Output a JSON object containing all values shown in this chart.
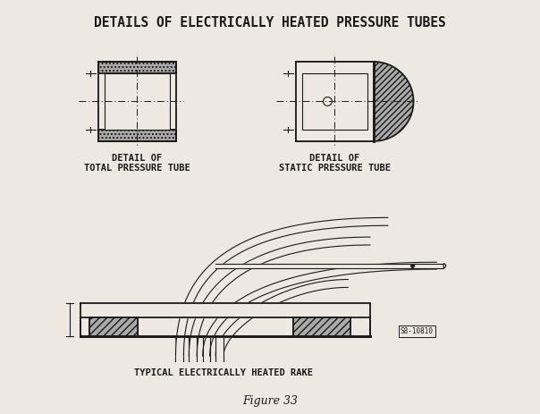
{
  "title": "DETAILS OF ELECTRICALLY HEATED PRESSURE TUBES",
  "label1_line1": "DETAIL OF",
  "label1_line2": "TOTAL PRESSURE TUBE",
  "label2_line1": "DETAIL OF",
  "label2_line2": "STATIC PRESSURE TUBE",
  "label3": "TYPICAL ELECTRICALLY HEATED RAKE",
  "caption": "Figure 33",
  "fig_id": "S8-10810",
  "bg_color": "#ede9e2",
  "line_color": "#1a1a1a",
  "hatch_fill": "#aaaaaa",
  "title_fontsize": 10.5,
  "label_fontsize": 7.5,
  "caption_fontsize": 9
}
